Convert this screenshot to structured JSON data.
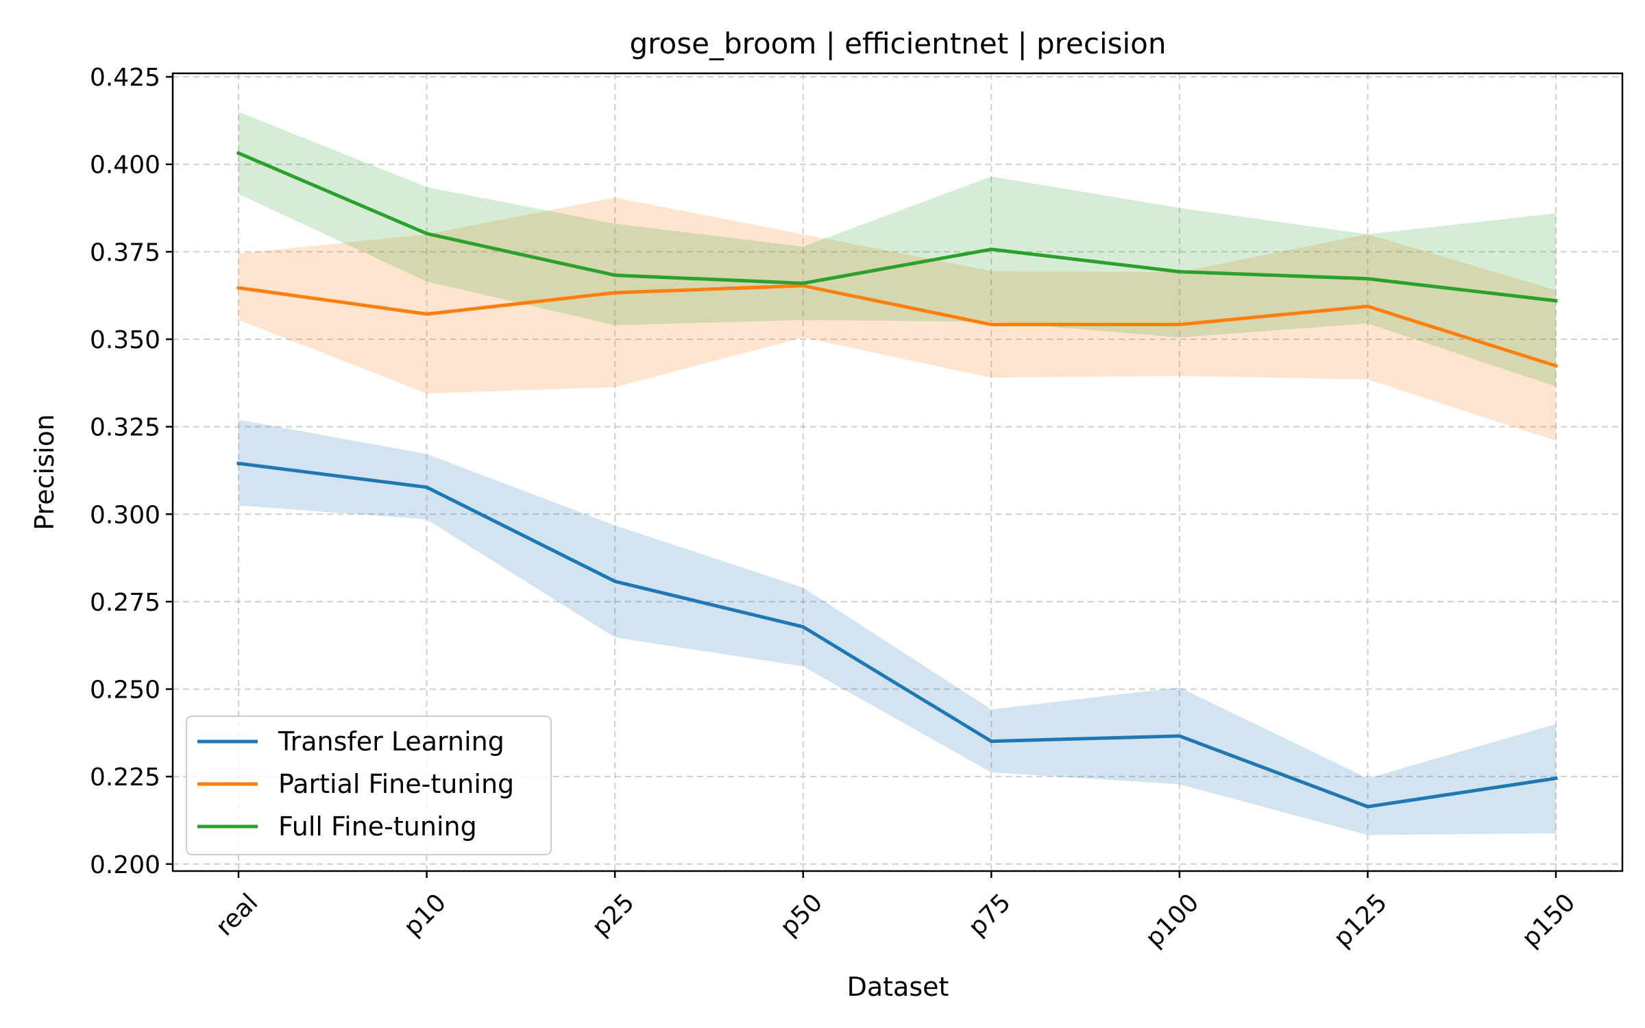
{
  "chart_data": {
    "type": "line",
    "title": "grose_broom | efficientnet | precision",
    "xlabel": "Dataset",
    "ylabel": "Precision",
    "categories": [
      "real",
      "p10",
      "p25",
      "p50",
      "p75",
      "p100",
      "p125",
      "p150"
    ],
    "ylim": [
      0.198,
      0.426
    ],
    "yticks": [
      0.2,
      0.225,
      0.25,
      0.275,
      0.3,
      0.325,
      0.35,
      0.375,
      0.4,
      0.425
    ],
    "ytick_labels": [
      "0.200",
      "0.225",
      "0.250",
      "0.275",
      "0.300",
      "0.325",
      "0.350",
      "0.375",
      "0.400",
      "0.425"
    ],
    "grid": true,
    "legend_position": "lower-left",
    "series": [
      {
        "name": "Transfer Learning",
        "color": "#1f77b4",
        "values": [
          0.3145,
          0.3077,
          0.2808,
          0.2678,
          0.2351,
          0.2366,
          0.2164,
          0.2245
        ],
        "lower": [
          0.3025,
          0.2985,
          0.2648,
          0.2565,
          0.2262,
          0.2228,
          0.2083,
          0.2088
        ],
        "upper": [
          0.327,
          0.3172,
          0.2968,
          0.279,
          0.2442,
          0.2505,
          0.2245,
          0.24
        ]
      },
      {
        "name": "Partial Fine-tuning",
        "color": "#ff7f0e",
        "values": [
          0.3647,
          0.3572,
          0.3633,
          0.3653,
          0.3542,
          0.3542,
          0.3594,
          0.3424
        ],
        "lower": [
          0.3555,
          0.3345,
          0.3363,
          0.3505,
          0.339,
          0.3395,
          0.3385,
          0.321
        ],
        "upper": [
          0.3745,
          0.38,
          0.3905,
          0.38,
          0.3695,
          0.3692,
          0.38,
          0.364
        ]
      },
      {
        "name": "Full Fine-tuning",
        "color": "#2ca02c",
        "values": [
          0.4032,
          0.3802,
          0.3683,
          0.366,
          0.3757,
          0.3693,
          0.3673,
          0.361
        ],
        "lower": [
          0.3915,
          0.3665,
          0.354,
          0.3555,
          0.355,
          0.3505,
          0.3545,
          0.3365
        ],
        "upper": [
          0.415,
          0.3935,
          0.383,
          0.3765,
          0.3965,
          0.3875,
          0.38,
          0.386
        ]
      }
    ]
  }
}
